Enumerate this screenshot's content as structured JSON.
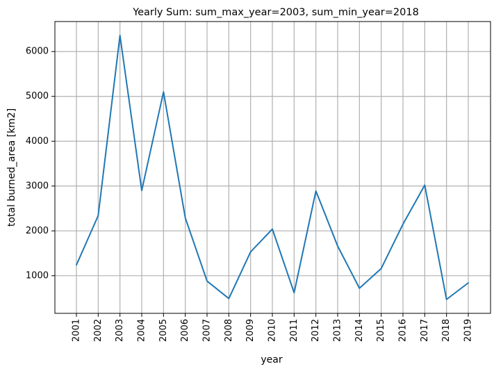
{
  "chart_data": {
    "type": "line",
    "title": "Yearly Sum: sum_max_year=2003, sum_min_year=2018",
    "xlabel": "year",
    "ylabel": "total burned_area [km2]",
    "x": [
      "2001",
      "2002",
      "2003",
      "2004",
      "2005",
      "2006",
      "2007",
      "2008",
      "2009",
      "2010",
      "2011",
      "2012",
      "2013",
      "2014",
      "2015",
      "2016",
      "2017",
      "2018",
      "2019"
    ],
    "series": [
      {
        "values": [
          1240,
          2340,
          6360,
          2900,
          5100,
          2290,
          880,
          490,
          1530,
          2040,
          620,
          2890,
          1660,
          720,
          1160,
          2150,
          3020,
          470,
          840
        ],
        "color": "#1f77b4"
      }
    ],
    "yticks": [
      1000,
      2000,
      3000,
      4000,
      5000,
      6000
    ],
    "ylim": [
      160,
      6670
    ],
    "grid": true,
    "legend": "none"
  }
}
